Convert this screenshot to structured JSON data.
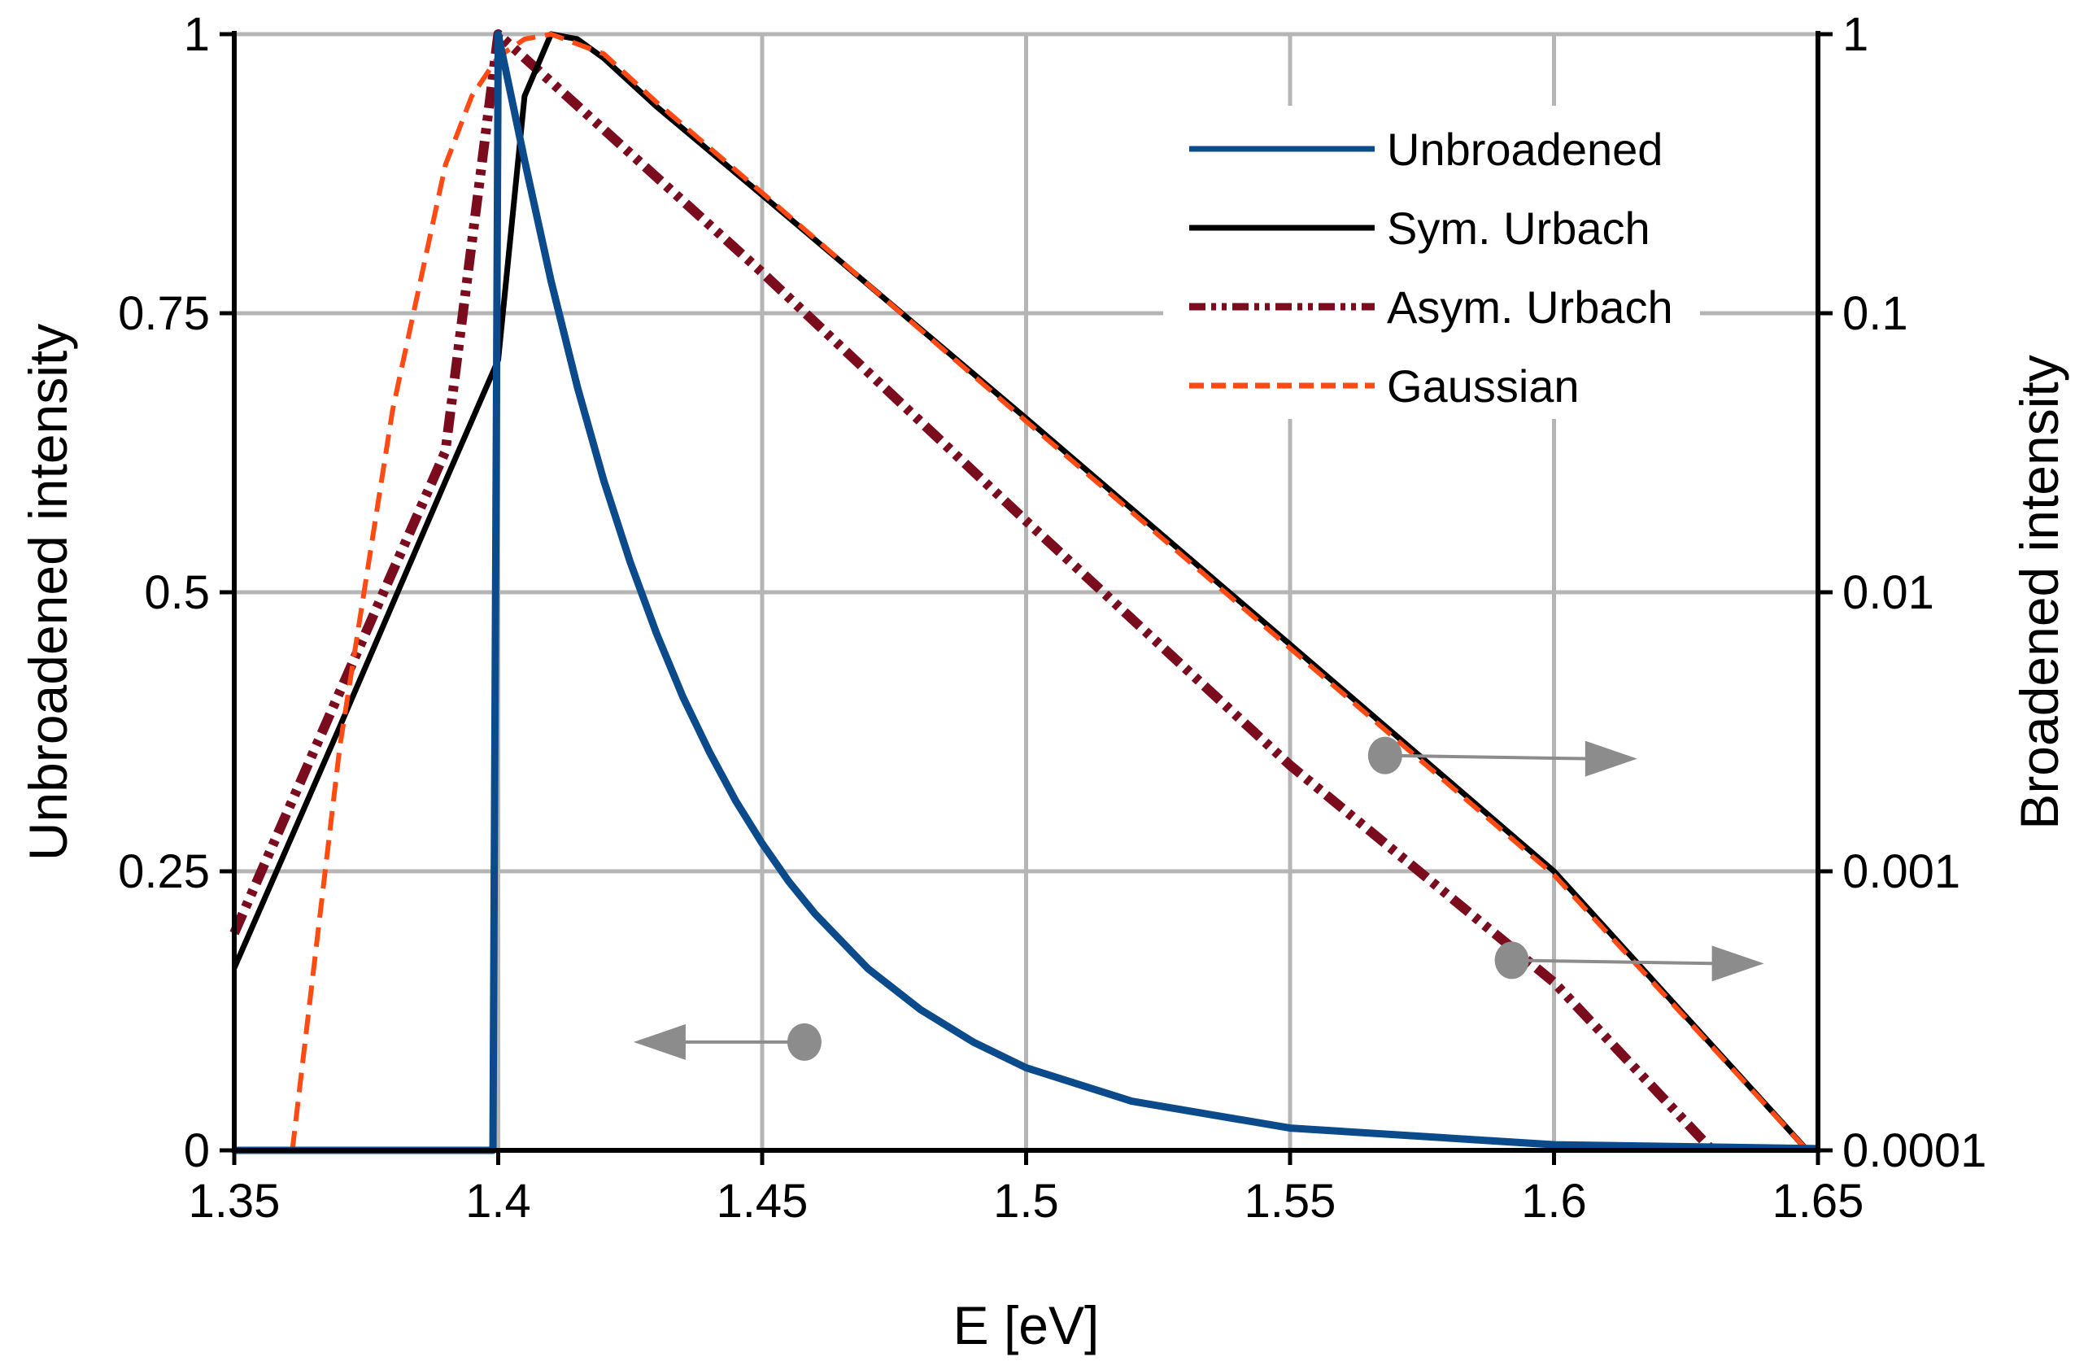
{
  "chart_data": {
    "type": "line",
    "title": "",
    "xlabel": "E [eV]",
    "ylabel_left": "Unbroadened intensity",
    "ylabel_right": "Broadened intensity",
    "xlim": [
      1.35,
      1.65
    ],
    "ylim_left": [
      0,
      1
    ],
    "ylim_right": [
      0.0001,
      1
    ],
    "yscale_right": "log",
    "grid": true,
    "legend_position": "top-right",
    "x_ticks": [
      1.35,
      1.4,
      1.45,
      1.5,
      1.55,
      1.6,
      1.65
    ],
    "x_tick_labels": [
      "1.35",
      "1.4",
      "1.45",
      "1.5",
      "1.55",
      "1.6",
      "1.65"
    ],
    "y_left_ticks": [
      0,
      0.25,
      0.5,
      0.75,
      1
    ],
    "y_left_tick_labels": [
      "0",
      "0.25",
      "0.5",
      "0.75",
      "1"
    ],
    "y_right_ticks": [
      0.0001,
      0.001,
      0.01,
      0.1,
      1
    ],
    "y_right_tick_labels": [
      "0.0001",
      "0.001",
      "0.01",
      "0.1",
      "1"
    ],
    "series": [
      {
        "name": "Unbroadened",
        "axis": "left",
        "color": "#0b4a8b",
        "style": "solid",
        "x": [
          1.35,
          1.399,
          1.4,
          1.405,
          1.41,
          1.415,
          1.42,
          1.425,
          1.43,
          1.435,
          1.44,
          1.445,
          1.45,
          1.455,
          1.46,
          1.47,
          1.48,
          1.49,
          1.5,
          1.52,
          1.55,
          1.6,
          1.65
        ],
        "y": [
          0,
          0,
          1.0,
          0.887,
          0.779,
          0.684,
          0.6,
          0.527,
          0.463,
          0.406,
          0.357,
          0.313,
          0.275,
          0.241,
          0.212,
          0.163,
          0.126,
          0.097,
          0.074,
          0.044,
          0.02,
          0.005,
          0.0015
        ]
      },
      {
        "name": "Sym. Urbach",
        "axis": "right",
        "color": "#000000",
        "style": "solid",
        "x": [
          1.35,
          1.37,
          1.39,
          1.4,
          1.405,
          1.41,
          1.415,
          1.42,
          1.43,
          1.45,
          1.5,
          1.55,
          1.6,
          1.648
        ],
        "y": [
          0.00045,
          0.0033,
          0.025,
          0.068,
          0.6,
          1.0,
          0.96,
          0.82,
          0.55,
          0.265,
          0.042,
          0.0065,
          0.001,
          0.0001
        ]
      },
      {
        "name": "Asym. Urbach",
        "axis": "right",
        "color": "#7b0c1e",
        "style": "dash-dot-dot",
        "x": [
          1.35,
          1.37,
          1.39,
          1.4,
          1.45,
          1.5,
          1.55,
          1.6,
          1.63
        ],
        "y": [
          0.0006,
          0.0044,
          0.032,
          1.0,
          0.14,
          0.018,
          0.0024,
          0.0004,
          0.0001
        ]
      },
      {
        "name": "Gaussian",
        "axis": "right",
        "color": "#ff4a14",
        "style": "dashed",
        "x": [
          1.361,
          1.37,
          1.38,
          1.39,
          1.395,
          1.4,
          1.405,
          1.41,
          1.42,
          1.43,
          1.45,
          1.5,
          1.55,
          1.6,
          1.648
        ],
        "y": [
          0.0001,
          0.0028,
          0.045,
          0.34,
          0.6,
          0.83,
          0.96,
          1.0,
          0.85,
          0.57,
          0.27,
          0.041,
          0.0063,
          0.00097,
          0.0001
        ]
      }
    ],
    "annotations": [
      {
        "name": "unbroadened-axis-marker",
        "x": 1.458,
        "y": 0.097,
        "axis": "left",
        "points_to": "left"
      },
      {
        "name": "sym-urbach-axis-marker",
        "x": 1.568,
        "y": 0.0026,
        "axis": "right",
        "points_to": "right"
      },
      {
        "name": "asym-urbach-axis-marker",
        "x": 1.592,
        "y": 0.00048,
        "axis": "right",
        "points_to": "right"
      }
    ]
  }
}
